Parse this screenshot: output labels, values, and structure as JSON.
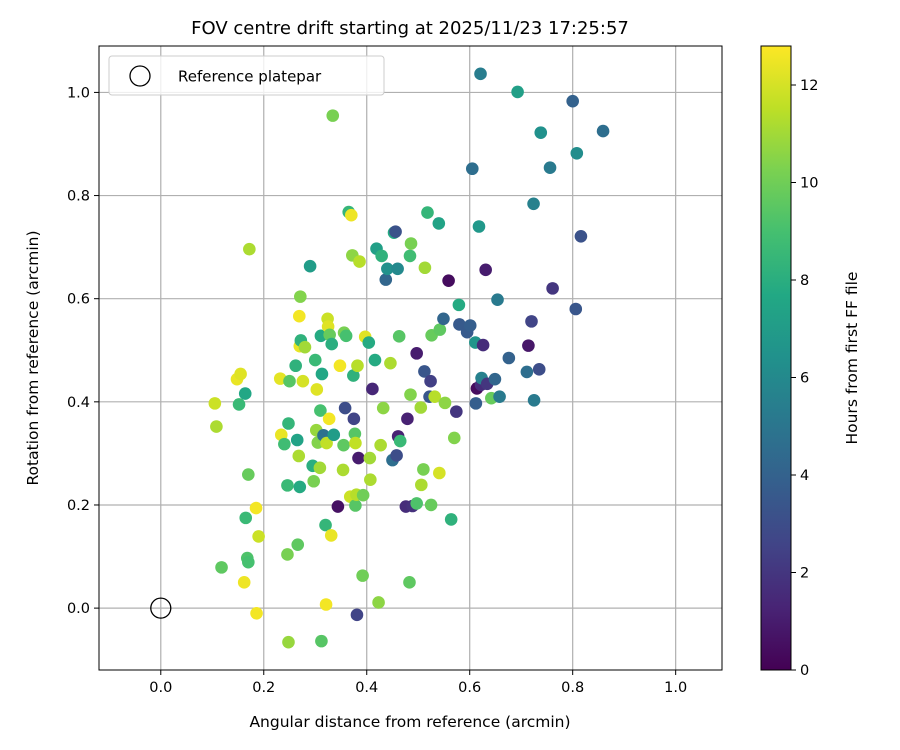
{
  "chart_data": {
    "type": "scatter",
    "title": "FOV centre drift starting at 2025/11/23 17:25:57",
    "xlabel": "Angular distance from reference (arcmin)",
    "ylabel": "Rotation from reference (arcmin)",
    "xlim": [
      -0.12,
      1.09
    ],
    "ylim": [
      -0.12,
      1.09
    ],
    "xticks": [
      0.0,
      0.2,
      0.4,
      0.6,
      0.8,
      1.0
    ],
    "yticks": [
      0.0,
      0.2,
      0.4,
      0.6,
      0.8,
      1.0
    ],
    "xtick_labels": [
      "0.0",
      "0.2",
      "0.4",
      "0.6",
      "0.8",
      "1.0"
    ],
    "ytick_labels": [
      "0.0",
      "0.2",
      "0.4",
      "0.6",
      "0.8",
      "1.0"
    ],
    "grid": true,
    "legend": {
      "position": "top-left",
      "entries": [
        "Reference platepar"
      ]
    },
    "reference": {
      "x": 0.0,
      "y": 0.0
    },
    "colorbar": {
      "label": "Hours from first FF file",
      "min": 0,
      "max": 12.8,
      "ticks": [
        0,
        2,
        4,
        6,
        8,
        10,
        12
      ],
      "tick_labels": [
        "0",
        "2",
        "4",
        "6",
        "8",
        "10",
        "12"
      ],
      "colormap": "viridis"
    },
    "points": [
      {
        "x": 0.105,
        "y": 0.397,
        "c": 11.8
      },
      {
        "x": 0.108,
        "y": 0.352,
        "c": 11.2
      },
      {
        "x": 0.118,
        "y": 0.079,
        "c": 9.6
      },
      {
        "x": 0.148,
        "y": 0.444,
        "c": 12.4
      },
      {
        "x": 0.152,
        "y": 0.395,
        "c": 8.6
      },
      {
        "x": 0.155,
        "y": 0.454,
        "c": 12.2
      },
      {
        "x": 0.162,
        "y": 0.05,
        "c": 12.5
      },
      {
        "x": 0.164,
        "y": 0.416,
        "c": 7.6
      },
      {
        "x": 0.165,
        "y": 0.175,
        "c": 8.6
      },
      {
        "x": 0.168,
        "y": 0.097,
        "c": 9.2
      },
      {
        "x": 0.17,
        "y": 0.089,
        "c": 9.0
      },
      {
        "x": 0.17,
        "y": 0.259,
        "c": 9.8
      },
      {
        "x": 0.172,
        "y": 0.696,
        "c": 11.2
      },
      {
        "x": 0.185,
        "y": 0.194,
        "c": 12.6
      },
      {
        "x": 0.186,
        "y": -0.01,
        "c": 12.6
      },
      {
        "x": 0.19,
        "y": 0.139,
        "c": 11.8
      },
      {
        "x": 0.232,
        "y": 0.445,
        "c": 12.3
      },
      {
        "x": 0.234,
        "y": 0.336,
        "c": 12.4
      },
      {
        "x": 0.24,
        "y": 0.318,
        "c": 8.8
      },
      {
        "x": 0.246,
        "y": 0.104,
        "c": 10.2
      },
      {
        "x": 0.246,
        "y": 0.238,
        "c": 8.6
      },
      {
        "x": 0.248,
        "y": 0.358,
        "c": 8.4
      },
      {
        "x": 0.248,
        "y": -0.066,
        "c": 10.8
      },
      {
        "x": 0.25,
        "y": 0.44,
        "c": 9.4
      },
      {
        "x": 0.262,
        "y": 0.47,
        "c": 8.2
      },
      {
        "x": 0.265,
        "y": 0.326,
        "c": 7.4
      },
      {
        "x": 0.266,
        "y": 0.123,
        "c": 9.6
      },
      {
        "x": 0.268,
        "y": 0.295,
        "c": 11.2
      },
      {
        "x": 0.269,
        "y": 0.566,
        "c": 12.6
      },
      {
        "x": 0.27,
        "y": 0.235,
        "c": 7.8
      },
      {
        "x": 0.27,
        "y": 0.508,
        "c": 12.4
      },
      {
        "x": 0.271,
        "y": 0.604,
        "c": 10.4
      },
      {
        "x": 0.272,
        "y": 0.519,
        "c": 8.2
      },
      {
        "x": 0.276,
        "y": 0.44,
        "c": 12.0
      },
      {
        "x": 0.28,
        "y": 0.506,
        "c": 11.0
      },
      {
        "x": 0.29,
        "y": 0.663,
        "c": 7.0
      },
      {
        "x": 0.295,
        "y": 0.276,
        "c": 8.0
      },
      {
        "x": 0.297,
        "y": 0.246,
        "c": 10.2
      },
      {
        "x": 0.3,
        "y": 0.481,
        "c": 8.6
      },
      {
        "x": 0.302,
        "y": 0.345,
        "c": 10.8
      },
      {
        "x": 0.303,
        "y": 0.424,
        "c": 12.2
      },
      {
        "x": 0.305,
        "y": 0.321,
        "c": 10.4
      },
      {
        "x": 0.309,
        "y": 0.272,
        "c": 11.0
      },
      {
        "x": 0.31,
        "y": 0.383,
        "c": 9.0
      },
      {
        "x": 0.311,
        "y": 0.528,
        "c": 7.8
      },
      {
        "x": 0.312,
        "y": -0.064,
        "c": 9.4
      },
      {
        "x": 0.313,
        "y": 0.454,
        "c": 7.6
      },
      {
        "x": 0.316,
        "y": 0.335,
        "c": 4.8
      },
      {
        "x": 0.32,
        "y": 0.161,
        "c": 8.4
      },
      {
        "x": 0.321,
        "y": 0.007,
        "c": 12.6
      },
      {
        "x": 0.322,
        "y": 0.32,
        "c": 11.6
      },
      {
        "x": 0.324,
        "y": 0.561,
        "c": 11.8
      },
      {
        "x": 0.325,
        "y": 0.546,
        "c": 12.2
      },
      {
        "x": 0.327,
        "y": 0.367,
        "c": 12.6
      },
      {
        "x": 0.328,
        "y": 0.53,
        "c": 9.8
      },
      {
        "x": 0.331,
        "y": 0.141,
        "c": 12.4
      },
      {
        "x": 0.332,
        "y": 0.512,
        "c": 8.0
      },
      {
        "x": 0.334,
        "y": 0.955,
        "c": 10.2
      },
      {
        "x": 0.336,
        "y": 0.336,
        "c": 7.0
      },
      {
        "x": 0.344,
        "y": 0.197,
        "c": 0.6
      },
      {
        "x": 0.348,
        "y": 0.47,
        "c": 12.6
      },
      {
        "x": 0.354,
        "y": 0.268,
        "c": 11.2
      },
      {
        "x": 0.355,
        "y": 0.316,
        "c": 9.6
      },
      {
        "x": 0.356,
        "y": 0.534,
        "c": 10.2
      },
      {
        "x": 0.358,
        "y": 0.388,
        "c": 3.0
      },
      {
        "x": 0.36,
        "y": 0.528,
        "c": 9.0
      },
      {
        "x": 0.365,
        "y": 0.768,
        "c": 8.4
      },
      {
        "x": 0.368,
        "y": 0.216,
        "c": 11.8
      },
      {
        "x": 0.37,
        "y": 0.762,
        "c": 12.5
      },
      {
        "x": 0.372,
        "y": 0.684,
        "c": 10.6
      },
      {
        "x": 0.374,
        "y": 0.451,
        "c": 8.2
      },
      {
        "x": 0.375,
        "y": 0.367,
        "c": 2.6
      },
      {
        "x": 0.377,
        "y": 0.338,
        "c": 9.4
      },
      {
        "x": 0.378,
        "y": 0.32,
        "c": 11.6
      },
      {
        "x": 0.378,
        "y": 0.199,
        "c": 9.4
      },
      {
        "x": 0.38,
        "y": 0.22,
        "c": 11.4
      },
      {
        "x": 0.381,
        "y": -0.013,
        "c": 2.6
      },
      {
        "x": 0.382,
        "y": 0.47,
        "c": 11.4
      },
      {
        "x": 0.384,
        "y": 0.291,
        "c": 1.0
      },
      {
        "x": 0.386,
        "y": 0.672,
        "c": 11.4
      },
      {
        "x": 0.392,
        "y": 0.063,
        "c": 10.0
      },
      {
        "x": 0.393,
        "y": 0.219,
        "c": 10.0
      },
      {
        "x": 0.397,
        "y": 0.526,
        "c": 12.2
      },
      {
        "x": 0.404,
        "y": 0.515,
        "c": 7.8
      },
      {
        "x": 0.406,
        "y": 0.291,
        "c": 11.0
      },
      {
        "x": 0.407,
        "y": 0.249,
        "c": 11.2
      },
      {
        "x": 0.411,
        "y": 0.425,
        "c": 1.4
      },
      {
        "x": 0.416,
        "y": 0.481,
        "c": 7.8
      },
      {
        "x": 0.419,
        "y": 0.697,
        "c": 7.2
      },
      {
        "x": 0.423,
        "y": 0.011,
        "c": 10.6
      },
      {
        "x": 0.427,
        "y": 0.316,
        "c": 11.2
      },
      {
        "x": 0.429,
        "y": 0.683,
        "c": 8.2
      },
      {
        "x": 0.432,
        "y": 0.388,
        "c": 10.6
      },
      {
        "x": 0.437,
        "y": 0.637,
        "c": 4.2
      },
      {
        "x": 0.44,
        "y": 0.658,
        "c": 6.4
      },
      {
        "x": 0.446,
        "y": 0.475,
        "c": 11.2
      },
      {
        "x": 0.45,
        "y": 0.287,
        "c": 4.6
      },
      {
        "x": 0.453,
        "y": 0.728,
        "c": 7.8
      },
      {
        "x": 0.456,
        "y": 0.73,
        "c": 3.2
      },
      {
        "x": 0.458,
        "y": 0.296,
        "c": 3.0
      },
      {
        "x": 0.46,
        "y": 0.658,
        "c": 6.0
      },
      {
        "x": 0.461,
        "y": 0.333,
        "c": 1.2
      },
      {
        "x": 0.463,
        "y": 0.527,
        "c": 9.4
      },
      {
        "x": 0.465,
        "y": 0.324,
        "c": 8.6
      },
      {
        "x": 0.476,
        "y": 0.197,
        "c": 1.6
      },
      {
        "x": 0.479,
        "y": 0.367,
        "c": 1.2
      },
      {
        "x": 0.483,
        "y": 0.05,
        "c": 9.6
      },
      {
        "x": 0.484,
        "y": 0.683,
        "c": 8.8
      },
      {
        "x": 0.485,
        "y": 0.414,
        "c": 10.4
      },
      {
        "x": 0.486,
        "y": 0.707,
        "c": 10.2
      },
      {
        "x": 0.489,
        "y": 0.198,
        "c": 1.8
      },
      {
        "x": 0.497,
        "y": 0.494,
        "c": 1.0
      },
      {
        "x": 0.497,
        "y": 0.203,
        "c": 9.2
      },
      {
        "x": 0.505,
        "y": 0.389,
        "c": 11.0
      },
      {
        "x": 0.506,
        "y": 0.239,
        "c": 11.2
      },
      {
        "x": 0.51,
        "y": 0.269,
        "c": 10.2
      },
      {
        "x": 0.512,
        "y": 0.459,
        "c": 3.4
      },
      {
        "x": 0.513,
        "y": 0.66,
        "c": 11.0
      },
      {
        "x": 0.518,
        "y": 0.767,
        "c": 8.4
      },
      {
        "x": 0.522,
        "y": 0.41,
        "c": 3.4
      },
      {
        "x": 0.524,
        "y": 0.44,
        "c": 2.4
      },
      {
        "x": 0.525,
        "y": 0.2,
        "c": 9.8
      },
      {
        "x": 0.526,
        "y": 0.529,
        "c": 9.8
      },
      {
        "x": 0.532,
        "y": 0.41,
        "c": 11.4
      },
      {
        "x": 0.54,
        "y": 0.746,
        "c": 7.4
      },
      {
        "x": 0.541,
        "y": 0.262,
        "c": 12.0
      },
      {
        "x": 0.542,
        "y": 0.54,
        "c": 9.6
      },
      {
        "x": 0.549,
        "y": 0.561,
        "c": 4.2
      },
      {
        "x": 0.552,
        "y": 0.398,
        "c": 10.6
      },
      {
        "x": 0.559,
        "y": 0.635,
        "c": 0.4
      },
      {
        "x": 0.564,
        "y": 0.172,
        "c": 8.2
      },
      {
        "x": 0.57,
        "y": 0.33,
        "c": 10.4
      },
      {
        "x": 0.574,
        "y": 0.381,
        "c": 2.0
      },
      {
        "x": 0.579,
        "y": 0.588,
        "c": 7.8
      },
      {
        "x": 0.58,
        "y": 0.55,
        "c": 3.6
      },
      {
        "x": 0.595,
        "y": 0.535,
        "c": 3.6
      },
      {
        "x": 0.601,
        "y": 0.548,
        "c": 3.8
      },
      {
        "x": 0.605,
        "y": 0.852,
        "c": 4.6
      },
      {
        "x": 0.611,
        "y": 0.515,
        "c": 6.6
      },
      {
        "x": 0.612,
        "y": 0.397,
        "c": 3.8
      },
      {
        "x": 0.614,
        "y": 0.426,
        "c": 0.4
      },
      {
        "x": 0.618,
        "y": 0.74,
        "c": 6.8
      },
      {
        "x": 0.621,
        "y": 1.036,
        "c": 5.4
      },
      {
        "x": 0.622,
        "y": 0.433,
        "c": 1.6
      },
      {
        "x": 0.623,
        "y": 0.446,
        "c": 5.6
      },
      {
        "x": 0.626,
        "y": 0.51,
        "c": 1.6
      },
      {
        "x": 0.631,
        "y": 0.656,
        "c": 1.0
      },
      {
        "x": 0.634,
        "y": 0.435,
        "c": 2.0
      },
      {
        "x": 0.642,
        "y": 0.407,
        "c": 9.8
      },
      {
        "x": 0.649,
        "y": 0.444,
        "c": 4.2
      },
      {
        "x": 0.654,
        "y": 0.598,
        "c": 5.2
      },
      {
        "x": 0.658,
        "y": 0.41,
        "c": 5.2
      },
      {
        "x": 0.676,
        "y": 0.485,
        "c": 4.0
      },
      {
        "x": 0.693,
        "y": 1.001,
        "c": 7.2
      },
      {
        "x": 0.711,
        "y": 0.458,
        "c": 4.6
      },
      {
        "x": 0.714,
        "y": 0.509,
        "c": 0.8
      },
      {
        "x": 0.72,
        "y": 0.556,
        "c": 2.6
      },
      {
        "x": 0.724,
        "y": 0.784,
        "c": 5.6
      },
      {
        "x": 0.725,
        "y": 0.403,
        "c": 5.2
      },
      {
        "x": 0.735,
        "y": 0.463,
        "c": 3.0
      },
      {
        "x": 0.738,
        "y": 0.922,
        "c": 6.4
      },
      {
        "x": 0.756,
        "y": 0.854,
        "c": 5.2
      },
      {
        "x": 0.761,
        "y": 0.62,
        "c": 2.0
      },
      {
        "x": 0.8,
        "y": 0.983,
        "c": 4.0
      },
      {
        "x": 0.806,
        "y": 0.58,
        "c": 3.4
      },
      {
        "x": 0.808,
        "y": 0.882,
        "c": 6.2
      },
      {
        "x": 0.816,
        "y": 0.721,
        "c": 3.2
      },
      {
        "x": 0.859,
        "y": 0.925,
        "c": 4.6
      }
    ]
  }
}
